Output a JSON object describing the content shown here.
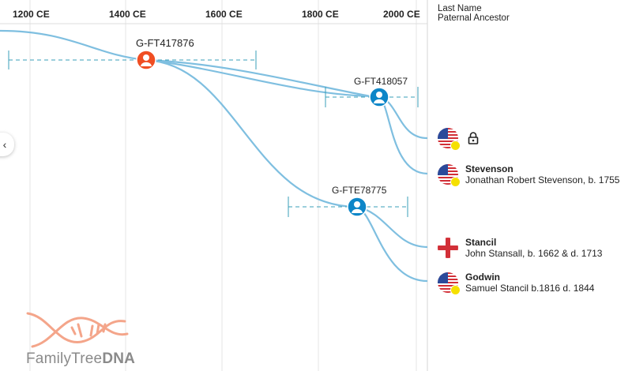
{
  "timeline": {
    "axis_labels": [
      "1200 CE",
      "1400 CE",
      "1600 CE",
      "1800 CE",
      "2000 CE"
    ],
    "line_color": "#7fbfe0",
    "range_color": "#3a9fb8"
  },
  "header": {
    "line1": "Last Name",
    "line2": "Paternal Ancestor"
  },
  "nodes": [
    {
      "label": "G-FT417876",
      "color": "#f04e23",
      "icon": "person-icon"
    },
    {
      "label": "G-FT418057",
      "color": "#0d86c8",
      "icon": "person-icon"
    },
    {
      "label": "G-FTE78775",
      "color": "#0d86c8",
      "icon": "person-icon"
    }
  ],
  "matches": [
    {
      "name": "",
      "ancestor": "",
      "flag": "us-flag",
      "locked": true
    },
    {
      "name": "Stevenson",
      "ancestor": "Jonathan Robert Stevenson, b. 1755",
      "flag": "us-flag",
      "locked": false
    },
    {
      "name": "Stancil",
      "ancestor": "John Stansall, b. 1662 & d. 1713",
      "flag": "england-flag",
      "locked": false
    },
    {
      "name": "Godwin",
      "ancestor": "Samuel Stancil b.1816 d. 1844",
      "flag": "us-flag",
      "locked": false
    }
  ],
  "logo": {
    "text_light": "FamilyTree",
    "text_bold": "DNA",
    "color": "#f4a58a"
  }
}
